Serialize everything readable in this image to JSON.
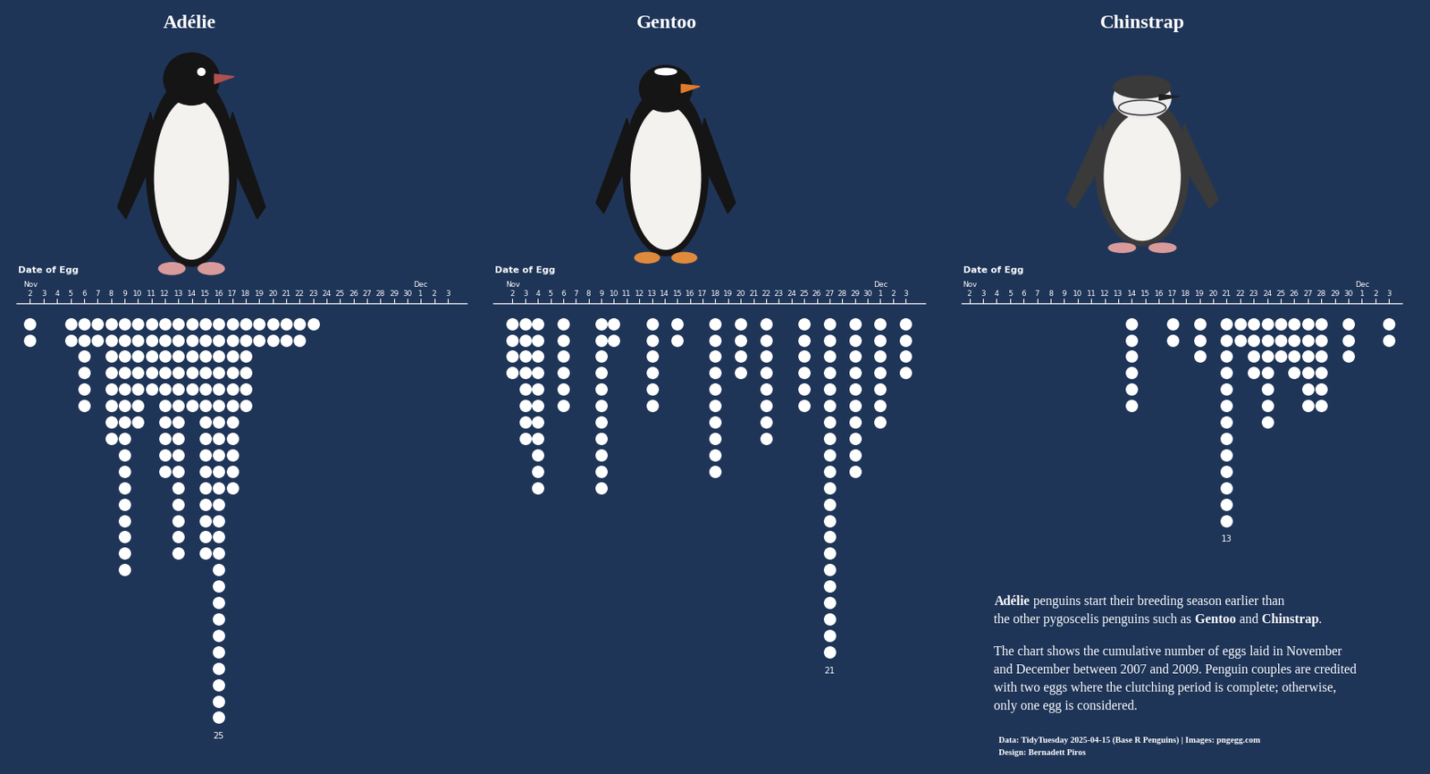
{
  "chart_data": [
    {
      "type": "dot",
      "title": "Adélie",
      "x_label": "Date of Egg",
      "color": "#ffffff",
      "tick_labels": "x",
      "categories": [
        "2",
        "3",
        "4",
        "5",
        "6",
        "7",
        "8",
        "9",
        "10",
        "11",
        "12",
        "13",
        "14",
        "15",
        "16",
        "17",
        "18",
        "19",
        "20",
        "21",
        "22",
        "23",
        "24",
        "25",
        "26",
        "27",
        "28",
        "29",
        "30",
        "1",
        "2",
        "3"
      ],
      "values": [
        2,
        0,
        0,
        2,
        6,
        2,
        8,
        16,
        7,
        5,
        10,
        15,
        6,
        15,
        25,
        11,
        6,
        2,
        2,
        2,
        2,
        1,
        0,
        0,
        0,
        0,
        0,
        0,
        0,
        0,
        0,
        0
      ],
      "month_labels": [
        {
          "index": 0,
          "label": "Nov"
        },
        {
          "index": 29,
          "label": "Dec"
        }
      ],
      "annotations": [
        {
          "index": 14,
          "text": "25"
        }
      ]
    },
    {
      "type": "dot",
      "title": "Gentoo",
      "x_label": "Date of Egg",
      "color": "#ffffff",
      "tick_labels": "x",
      "categories": [
        "2",
        "3",
        "4",
        "5",
        "6",
        "7",
        "8",
        "9",
        "10",
        "11",
        "12",
        "13",
        "14",
        "15",
        "16",
        "17",
        "18",
        "19",
        "20",
        "21",
        "22",
        "23",
        "24",
        "25",
        "26",
        "27",
        "28",
        "29",
        "30",
        "1",
        "2",
        "3"
      ],
      "values": [
        4,
        8,
        11,
        0,
        6,
        0,
        0,
        11,
        2,
        0,
        0,
        6,
        0,
        2,
        0,
        0,
        10,
        0,
        4,
        0,
        8,
        0,
        0,
        6,
        0,
        21,
        0,
        10,
        0,
        7,
        0,
        4
      ],
      "month_labels": [
        {
          "index": 0,
          "label": "Nov"
        },
        {
          "index": 29,
          "label": "Dec"
        }
      ],
      "annotations": [
        {
          "index": 25,
          "text": "21"
        }
      ]
    },
    {
      "type": "dot",
      "title": "Chinstrap",
      "x_label": "Date of Egg",
      "color": "#ffffff",
      "tick_labels": "x",
      "categories": [
        "2",
        "3",
        "4",
        "5",
        "6",
        "7",
        "8",
        "9",
        "10",
        "11",
        "12",
        "13",
        "14",
        "15",
        "16",
        "17",
        "18",
        "19",
        "20",
        "21",
        "22",
        "23",
        "24",
        "25",
        "26",
        "27",
        "28",
        "29",
        "30",
        "1",
        "2",
        "3"
      ],
      "values": [
        0,
        0,
        0,
        0,
        0,
        0,
        0,
        0,
        0,
        0,
        0,
        0,
        6,
        0,
        0,
        2,
        0,
        3,
        0,
        13,
        2,
        4,
        7,
        3,
        4,
        6,
        6,
        0,
        3,
        0,
        0,
        2
      ],
      "month_labels": [
        {
          "index": 0,
          "label": "Nov"
        },
        {
          "index": 29,
          "label": "Dec"
        }
      ],
      "annotations": [
        {
          "index": 19,
          "text": "13"
        }
      ]
    }
  ],
  "notes": {
    "paragraph_1": [
      [
        {
          "text": "Adélie",
          "bold": true
        },
        {
          "text": " penguins start their breeding season earlier than",
          "bold": false
        }
      ],
      [
        {
          "text": "the other pygoscelis penguins such as",
          "bold": false
        },
        {
          "text": " Gentoo",
          "bold": true
        },
        {
          "text": " and",
          "bold": false
        },
        {
          "text": " Chinstrap",
          "bold": true
        },
        {
          "text": ".",
          "bold": false
        }
      ]
    ],
    "paragraph_2": [
      "The chart shows the cumulative number of eggs laid in November",
      "and December between 2007 and 2009. Penguin couples are credited",
      "with two eggs where the clutching period is complete; otherwise,",
      "only one egg is considered."
    ]
  },
  "credits": [
    "Data: TidyTuesday 2025-04-15 (Base R Penguins) | Images: pngegg.com",
    "Design: Bernadett Piros"
  ]
}
